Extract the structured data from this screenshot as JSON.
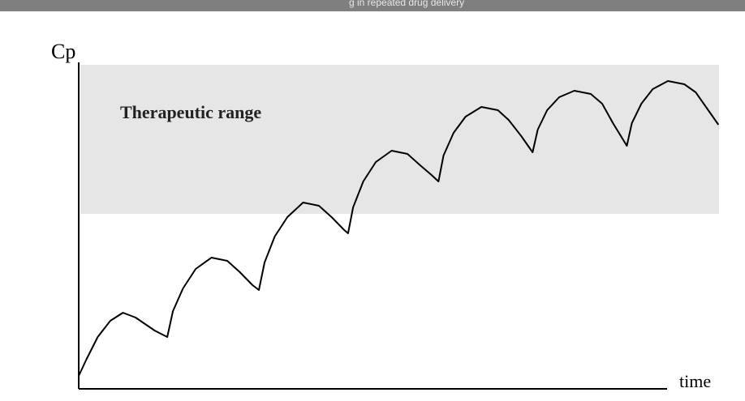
{
  "topbar": {
    "text": "g in repeated drug delivery"
  },
  "colors": {
    "topbar": "#7f7f7f",
    "band_fill": "#e6e6e6",
    "curve": "#000000",
    "axis": "#000000"
  },
  "chart_data": {
    "type": "line",
    "title": "",
    "xlabel": "time",
    "ylabel": "Cp",
    "grid": false,
    "xlim": [
      0,
      100
    ],
    "ylim": [
      0,
      100
    ],
    "band": {
      "label": "Therapeutic range",
      "y0": 54,
      "y1": 100
    },
    "series": [
      {
        "name": "",
        "points": [
          [
            0,
            4
          ],
          [
            1.2,
            9
          ],
          [
            3,
            16
          ],
          [
            5,
            21
          ],
          [
            7,
            23.5
          ],
          [
            9,
            22
          ],
          [
            10.5,
            20
          ],
          [
            12,
            18
          ],
          [
            14,
            16
          ],
          [
            14,
            16
          ],
          [
            14.9,
            24
          ],
          [
            16.5,
            31
          ],
          [
            18.5,
            37
          ],
          [
            21,
            40.5
          ],
          [
            23.5,
            39.5
          ],
          [
            25.5,
            36
          ],
          [
            27.5,
            32
          ],
          [
            28.5,
            30.5
          ],
          [
            28.5,
            30.5
          ],
          [
            29.4,
            39
          ],
          [
            31,
            47
          ],
          [
            33,
            53
          ],
          [
            35.5,
            57.5
          ],
          [
            38,
            56.5
          ],
          [
            40,
            53
          ],
          [
            42,
            49
          ],
          [
            42.6,
            48
          ],
          [
            42.6,
            48
          ],
          [
            43.4,
            56
          ],
          [
            45,
            64
          ],
          [
            47,
            70
          ],
          [
            49.5,
            73.5
          ],
          [
            52,
            72.5
          ],
          [
            54,
            69
          ],
          [
            55.8,
            66
          ],
          [
            56.9,
            64
          ],
          [
            56.9,
            64
          ],
          [
            57.7,
            72
          ],
          [
            59.3,
            79
          ],
          [
            61.2,
            84
          ],
          [
            63.7,
            87
          ],
          [
            66.3,
            86
          ],
          [
            68,
            83
          ],
          [
            70,
            78
          ],
          [
            71.8,
            73
          ],
          [
            71.8,
            73
          ],
          [
            72.6,
            80
          ],
          [
            74.1,
            86
          ],
          [
            76,
            90
          ],
          [
            78.4,
            92
          ],
          [
            81,
            91
          ],
          [
            82.8,
            88
          ],
          [
            84.5,
            82
          ],
          [
            86.7,
            75
          ],
          [
            86.7,
            75
          ],
          [
            87.5,
            82
          ],
          [
            89,
            88
          ],
          [
            90.8,
            92.5
          ],
          [
            93.2,
            95
          ],
          [
            95.8,
            94
          ],
          [
            97.6,
            91.5
          ],
          [
            99.4,
            86.5
          ],
          [
            101.2,
            81.5
          ]
        ]
      }
    ]
  }
}
